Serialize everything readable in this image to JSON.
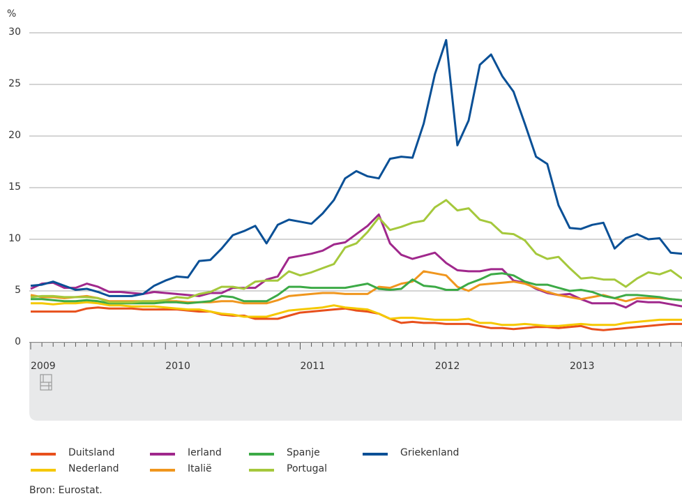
{
  "chart_data": {
    "type": "line",
    "unit": "%",
    "source": "Bron: Eurostat.",
    "categories": [
      "2009",
      null,
      null,
      null,
      null,
      null,
      null,
      null,
      null,
      null,
      null,
      null,
      "2010",
      null,
      null,
      null,
      null,
      null,
      null,
      null,
      null,
      null,
      null,
      null,
      "2011",
      null,
      null,
      null,
      null,
      null,
      null,
      null,
      null,
      null,
      null,
      null,
      "2012",
      null,
      null,
      null,
      null,
      null,
      null,
      null,
      null,
      null,
      null,
      null,
      "2013",
      null,
      null,
      null,
      null,
      null,
      null,
      null,
      null,
      null,
      null
    ],
    "ylim": [
      0,
      30
    ],
    "yticks": [
      0,
      5,
      10,
      15,
      20,
      25,
      30
    ],
    "grid": true,
    "series": [
      {
        "name": "Duitsland",
        "color": "#e8501c",
        "values": [
          3.0,
          3.0,
          3.0,
          3.0,
          3.0,
          3.3,
          3.4,
          3.3,
          3.3,
          3.3,
          3.2,
          3.2,
          3.2,
          3.2,
          3.1,
          3.0,
          3.0,
          2.7,
          2.6,
          2.6,
          2.3,
          2.3,
          2.3,
          2.6,
          2.9,
          3.0,
          3.1,
          3.2,
          3.3,
          3.1,
          3.0,
          2.8,
          2.3,
          1.9,
          2.0,
          1.9,
          1.9,
          1.8,
          1.8,
          1.8,
          1.6,
          1.4,
          1.4,
          1.3,
          1.4,
          1.5,
          1.5,
          1.4,
          1.5,
          1.6,
          1.3,
          1.2,
          1.3,
          1.4,
          1.5,
          1.6,
          1.7,
          1.8,
          1.8
        ]
      },
      {
        "name": "Nederland",
        "color": "#f5c800",
        "values": [
          3.8,
          3.8,
          3.7,
          3.8,
          3.8,
          3.9,
          3.8,
          3.6,
          3.6,
          3.5,
          3.5,
          3.5,
          3.4,
          3.3,
          3.2,
          3.2,
          3.0,
          2.8,
          2.7,
          2.5,
          2.5,
          2.5,
          2.8,
          3.1,
          3.2,
          3.3,
          3.4,
          3.6,
          3.4,
          3.3,
          3.2,
          2.8,
          2.3,
          2.4,
          2.4,
          2.3,
          2.2,
          2.2,
          2.2,
          2.3,
          1.9,
          1.9,
          1.7,
          1.7,
          1.8,
          1.7,
          1.6,
          1.6,
          1.7,
          1.8,
          1.7,
          1.7,
          1.7,
          1.9,
          2.0,
          2.1,
          2.2,
          2.2,
          2.2
        ]
      },
      {
        "name": "Ierland",
        "color": "#a0288c",
        "values": [
          5.2,
          5.7,
          5.8,
          5.3,
          5.3,
          5.7,
          5.4,
          4.9,
          4.9,
          4.8,
          4.7,
          4.9,
          4.8,
          4.7,
          4.6,
          4.5,
          4.8,
          4.8,
          5.3,
          5.3,
          5.3,
          6.1,
          6.4,
          8.2,
          8.4,
          8.6,
          8.9,
          9.5,
          9.7,
          10.5,
          11.3,
          12.4,
          9.6,
          8.5,
          8.1,
          8.4,
          8.7,
          7.7,
          7.0,
          6.9,
          6.9,
          7.1,
          7.1,
          6.0,
          5.8,
          5.2,
          4.8,
          4.6,
          4.7,
          4.2,
          3.8,
          3.8,
          3.8,
          3.4,
          4.0,
          3.9,
          3.9,
          3.7,
          3.5
        ]
      },
      {
        "name": "Italië",
        "color": "#f0961e",
        "values": [
          4.6,
          4.4,
          4.4,
          4.3,
          4.4,
          4.5,
          4.3,
          4.0,
          4.0,
          4.0,
          4.0,
          4.0,
          4.0,
          4.0,
          3.9,
          3.9,
          3.9,
          4.0,
          4.0,
          3.8,
          3.8,
          3.8,
          4.1,
          4.5,
          4.6,
          4.7,
          4.8,
          4.8,
          4.7,
          4.7,
          4.7,
          5.4,
          5.3,
          5.7,
          5.9,
          6.9,
          6.7,
          6.5,
          5.4,
          5.0,
          5.6,
          5.7,
          5.8,
          5.9,
          5.7,
          5.3,
          4.9,
          4.6,
          4.4,
          4.2,
          4.4,
          4.6,
          4.3,
          4.0,
          4.3,
          4.3,
          4.3,
          4.2,
          4.1
        ]
      },
      {
        "name": "Spanje",
        "color": "#3caa46",
        "values": [
          4.2,
          4.2,
          4.1,
          4.0,
          4.0,
          4.1,
          4.0,
          3.8,
          3.8,
          3.8,
          3.8,
          3.8,
          3.9,
          3.9,
          3.8,
          3.9,
          4.0,
          4.5,
          4.4,
          4.0,
          4.0,
          4.0,
          4.6,
          5.4,
          5.4,
          5.3,
          5.3,
          5.3,
          5.3,
          5.5,
          5.7,
          5.2,
          5.1,
          5.2,
          6.1,
          5.5,
          5.4,
          5.1,
          5.1,
          5.7,
          6.1,
          6.6,
          6.7,
          6.5,
          5.9,
          5.6,
          5.6,
          5.3,
          5.0,
          5.1,
          4.9,
          4.5,
          4.3,
          4.6,
          4.6,
          4.5,
          4.4,
          4.2,
          4.1
        ]
      },
      {
        "name": "Portugal",
        "color": "#a5c83c",
        "values": [
          4.4,
          4.5,
          4.5,
          4.4,
          4.4,
          4.4,
          4.3,
          3.9,
          3.9,
          3.9,
          4.0,
          4.0,
          4.1,
          4.4,
          4.3,
          4.7,
          4.9,
          5.4,
          5.4,
          5.2,
          5.9,
          6.0,
          6.0,
          6.9,
          6.5,
          6.8,
          7.2,
          7.6,
          9.2,
          9.6,
          10.7,
          12.1,
          10.9,
          11.2,
          11.6,
          11.8,
          13.1,
          13.8,
          12.8,
          13.0,
          11.9,
          11.6,
          10.6,
          10.5,
          9.9,
          8.6,
          8.1,
          8.3,
          7.2,
          6.2,
          6.3,
          6.1,
          6.1,
          5.4,
          6.2,
          6.8,
          6.6,
          7.0,
          6.2
        ]
      },
      {
        "name": "Griekenland",
        "color": "#0a5096",
        "values": [
          5.5,
          5.6,
          5.9,
          5.5,
          5.1,
          5.2,
          4.9,
          4.5,
          4.5,
          4.5,
          4.7,
          5.5,
          6.0,
          6.4,
          6.3,
          7.9,
          8.0,
          9.1,
          10.4,
          10.8,
          11.3,
          9.6,
          11.4,
          11.9,
          11.7,
          11.5,
          12.5,
          13.8,
          15.9,
          16.6,
          16.1,
          15.9,
          17.8,
          18.0,
          17.9,
          21.2,
          26.0,
          29.3,
          19.1,
          21.5,
          26.9,
          27.9,
          25.8,
          24.3,
          21.2,
          18.0,
          17.3,
          13.3,
          11.1,
          11.0,
          11.4,
          11.6,
          9.1,
          10.1,
          10.5,
          10.0,
          10.1,
          8.7,
          8.6
        ]
      }
    ]
  }
}
